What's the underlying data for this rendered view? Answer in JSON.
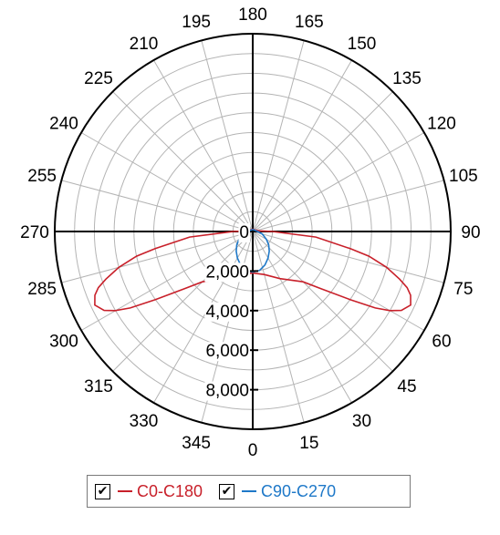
{
  "chart_data": {
    "type": "polar",
    "angle_unit": "degrees",
    "angle_orientation": "0 at bottom, clockwise toward right (15,30,...,90 at right, 180 at top, 270 at left)",
    "angle_ticks": [
      "0",
      "15",
      "30",
      "45",
      "60",
      "75",
      "90",
      "105",
      "120",
      "135",
      "150",
      "165",
      "180",
      "195",
      "210",
      "225",
      "240",
      "255",
      "270",
      "285",
      "300",
      "315",
      "330",
      "345"
    ],
    "radial_ticks": [
      0,
      2000,
      4000,
      6000,
      8000
    ],
    "radial_tick_labels": [
      "0",
      "2,000",
      "4,000",
      "6,000",
      "8,000"
    ],
    "rlim": [
      0,
      10000
    ],
    "grid": true,
    "legend_position": "bottom",
    "series": [
      {
        "name": "C0-C180",
        "color": "#c8202a",
        "checked": true,
        "points": [
          [
            0,
            2100
          ],
          [
            15,
            2250
          ],
          [
            30,
            2750
          ],
          [
            45,
            3600
          ],
          [
            50,
            4500
          ],
          [
            55,
            6000
          ],
          [
            58,
            7300
          ],
          [
            60,
            8000
          ],
          [
            62,
            8500
          ],
          [
            65,
            8800
          ],
          [
            68,
            8600
          ],
          [
            70,
            8300
          ],
          [
            72,
            7800
          ],
          [
            75,
            7000
          ],
          [
            78,
            6000
          ],
          [
            80,
            5000
          ],
          [
            85,
            3200
          ],
          [
            90,
            1000
          ],
          [
            95,
            350
          ],
          [
            120,
            150
          ],
          [
            180,
            120
          ],
          [
            240,
            150
          ],
          [
            265,
            350
          ],
          [
            270,
            1000
          ],
          [
            275,
            3200
          ],
          [
            280,
            5000
          ],
          [
            282,
            6000
          ],
          [
            285,
            7000
          ],
          [
            288,
            7800
          ],
          [
            290,
            8300
          ],
          [
            292,
            8600
          ],
          [
            295,
            8800
          ],
          [
            298,
            8500
          ],
          [
            300,
            8000
          ],
          [
            302,
            7300
          ],
          [
            305,
            6000
          ],
          [
            310,
            4500
          ],
          [
            315,
            3600
          ],
          [
            330,
            2750
          ],
          [
            345,
            2250
          ]
        ]
      },
      {
        "name": "C90-C270",
        "color": "#1e78c8",
        "checked": true,
        "points": [
          [
            0,
            2050
          ],
          [
            10,
            2000
          ],
          [
            20,
            1800
          ],
          [
            30,
            1550
          ],
          [
            40,
            1300
          ],
          [
            50,
            1050
          ],
          [
            60,
            800
          ],
          [
            75,
            500
          ],
          [
            90,
            250
          ],
          [
            120,
            130
          ],
          [
            180,
            100
          ],
          [
            240,
            130
          ],
          [
            270,
            250
          ],
          [
            285,
            500
          ],
          [
            300,
            800
          ],
          [
            310,
            1050
          ],
          [
            320,
            1300
          ],
          [
            330,
            1550
          ],
          [
            340,
            1800
          ],
          [
            350,
            2000
          ]
        ]
      }
    ]
  }
}
